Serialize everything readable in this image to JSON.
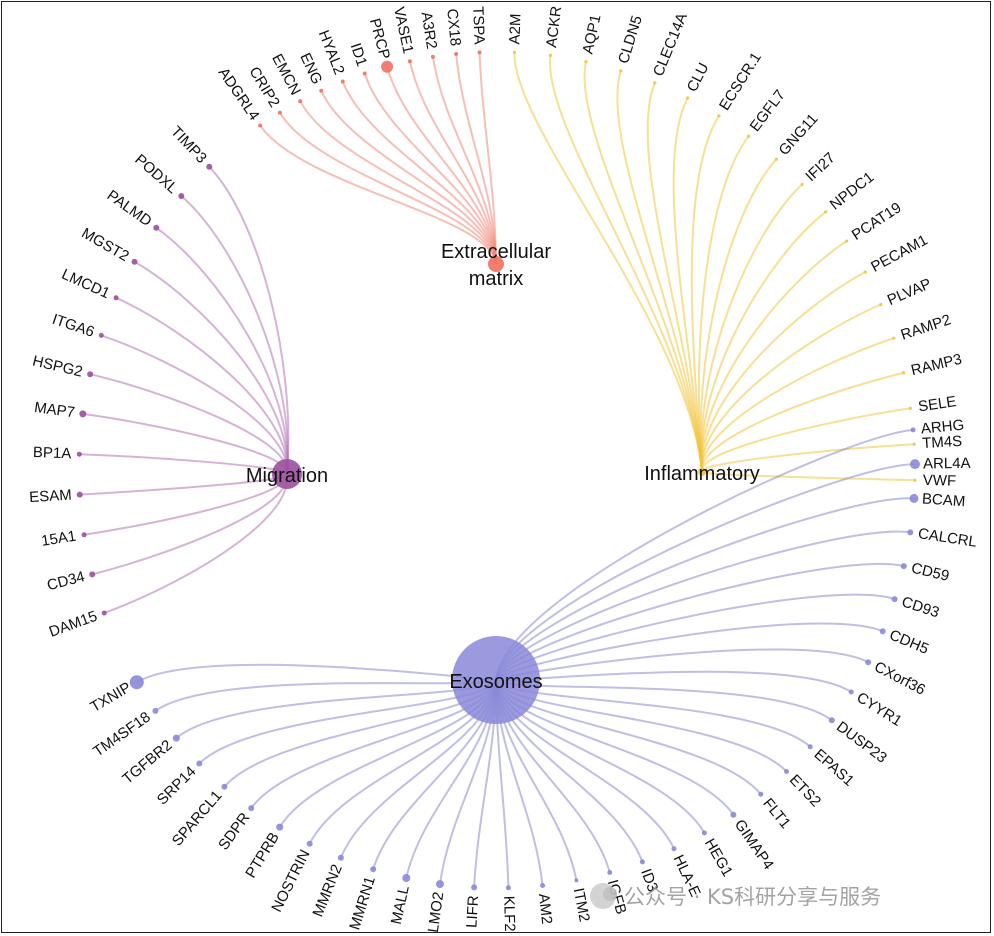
{
  "colors": {
    "extracellular_matrix": "#f08878",
    "inflammatory": "#f0c43c",
    "migration": "#b474b4",
    "exosomes": "#8a88d0"
  },
  "hubs": [
    {
      "key": "ecm",
      "label": [
        "Extracellular",
        "matrix"
      ],
      "color": "#f08878",
      "dot": "#f07060"
    },
    {
      "key": "inf",
      "label": [
        "Inflammatory"
      ],
      "color": "#f0c43c",
      "dot": "#f0c43c"
    },
    {
      "key": "mig",
      "label": [
        "Migration"
      ],
      "color": "#b474b4",
      "dot": "#9a509e"
    },
    {
      "key": "exo",
      "label": [
        "Exosomes"
      ],
      "color": "#8a88d0",
      "dot": "#8a88d8"
    }
  ],
  "genes": {
    "ecm": [
      "ADGRL4",
      "CRIP2",
      "EMCN",
      "ENG",
      "HYAL2",
      "ID1",
      "PRCP",
      "VASE1",
      "A3R2",
      "CX18",
      "TSPA"
    ],
    "inf": [
      "A2M",
      "ACKR",
      "AQP1",
      "CLDN5",
      "CLEC14A",
      "CLU",
      "ECSCR.1",
      "EGFL7",
      "GNG11",
      "IFI27",
      "NPDC1",
      "PCAT19",
      "PECAM1",
      "PLVAP",
      "RAMP2",
      "RAMP3",
      "SELE",
      "TM4S",
      "VWF"
    ],
    "mig": [
      "TIMP3",
      "PODXL",
      "PALMD",
      "MGST2",
      "LMCD1",
      "ITGA6",
      "HSPG2",
      "MAP7",
      "BP1A",
      "ESAM",
      "15A1",
      "CD34",
      "DAM15"
    ],
    "exo": [
      "TXNIP",
      "TM4SF18",
      "TGFBR2",
      "SRP14",
      "SPARCL1",
      "SDPR",
      "PTPRB",
      "NOSTRIN",
      "MMRN2",
      "MMRN1",
      "MALL",
      "LMO2",
      "LIFR",
      "KLF2",
      "AM2",
      "ITM2",
      "IGFB",
      "ID3",
      "HLA-E",
      "HEG1",
      "GIMAP4",
      "FLT1",
      "ETS2",
      "EPAS1",
      "DUSP23",
      "CYYR1",
      "CXorf36",
      "CDH5",
      "CD93",
      "CD59",
      "CALCRL",
      "BCAM",
      "ARL4A",
      "ARHG"
    ]
  },
  "watermark": {
    "text": "公众号 · KS科研分享与服务",
    "icon": "wechat-logo-icon"
  }
}
